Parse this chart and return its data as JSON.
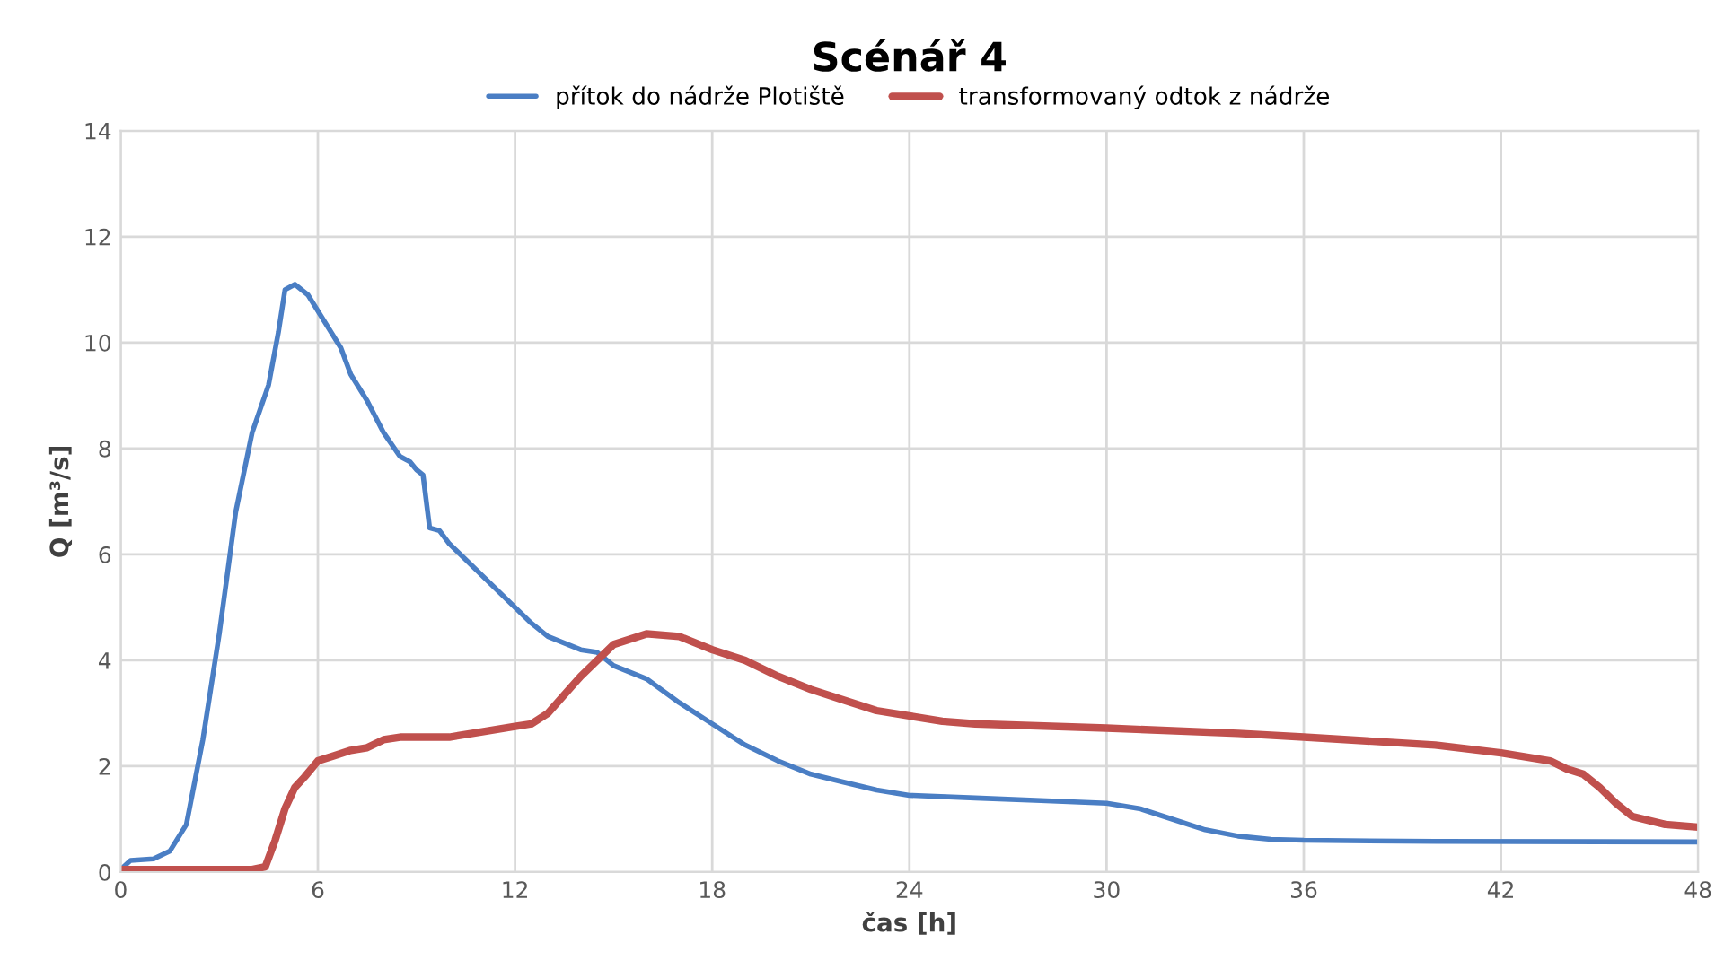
{
  "chart_data": {
    "type": "line",
    "title": "Scénář 4",
    "xlabel": "čas [h]",
    "ylabel": "Q [m³/s]",
    "xlim": [
      0,
      48
    ],
    "xticks": [
      0,
      6,
      12,
      18,
      24,
      30,
      36,
      42,
      48
    ],
    "ylim": [
      0,
      14
    ],
    "yticks": [
      0,
      2,
      4,
      6,
      8,
      10,
      12,
      14
    ],
    "grid": true,
    "legend": "top",
    "marker": "none",
    "line_style": "solid",
    "series": [
      {
        "name": "přítok do nádrže Plotiště",
        "color": "#4a7ec4",
        "x": [
          0,
          0.3,
          1,
          1.5,
          2,
          2.5,
          3,
          3.5,
          4,
          4.5,
          4.8,
          5,
          5.3,
          5.7,
          6,
          6.5,
          6.7,
          7,
          7.5,
          8,
          8.5,
          8.8,
          9,
          9.2,
          9.4,
          9.7,
          10,
          11,
          12,
          12.5,
          13,
          14,
          14.5,
          15,
          16,
          17,
          18,
          19,
          20,
          21,
          22,
          23,
          24,
          26,
          28,
          30,
          31,
          32,
          33,
          34,
          35,
          36,
          40,
          48
        ],
        "values": [
          0.05,
          0.22,
          0.25,
          0.4,
          0.9,
          2.5,
          4.5,
          6.8,
          8.3,
          9.2,
          10.2,
          11,
          11.1,
          10.9,
          10.6,
          10.1,
          9.9,
          9.4,
          8.9,
          8.3,
          7.85,
          7.75,
          7.6,
          7.5,
          6.5,
          6.45,
          6.2,
          5.6,
          5.0,
          4.7,
          4.45,
          4.2,
          4.15,
          3.9,
          3.65,
          3.2,
          2.8,
          2.4,
          2.1,
          1.85,
          1.7,
          1.55,
          1.45,
          1.4,
          1.35,
          1.3,
          1.2,
          1.0,
          0.8,
          0.68,
          0.62,
          0.6,
          0.58,
          0.57
        ]
      },
      {
        "name": "transformovaný odtok z nádrže",
        "color": "#c0504d",
        "x": [
          0,
          4,
          4.4,
          4.7,
          5,
          5.3,
          5.6,
          6,
          6.5,
          7,
          7.5,
          8,
          8.5,
          10,
          11,
          12,
          12.5,
          13,
          14,
          15,
          16,
          17,
          18,
          19,
          20,
          21,
          22,
          23,
          24,
          25,
          26,
          30,
          34,
          36,
          40,
          42,
          43.5,
          44,
          44.5,
          45,
          45.5,
          46,
          47,
          48
        ],
        "values": [
          0.05,
          0.05,
          0.1,
          0.6,
          1.2,
          1.6,
          1.8,
          2.1,
          2.2,
          2.3,
          2.35,
          2.5,
          2.55,
          2.55,
          2.65,
          2.75,
          2.8,
          3.0,
          3.7,
          4.3,
          4.5,
          4.45,
          4.2,
          4.0,
          3.7,
          3.45,
          3.25,
          3.05,
          2.95,
          2.85,
          2.8,
          2.72,
          2.62,
          2.55,
          2.4,
          2.25,
          2.1,
          1.95,
          1.85,
          1.6,
          1.3,
          1.05,
          0.9,
          0.85
        ]
      }
    ]
  }
}
